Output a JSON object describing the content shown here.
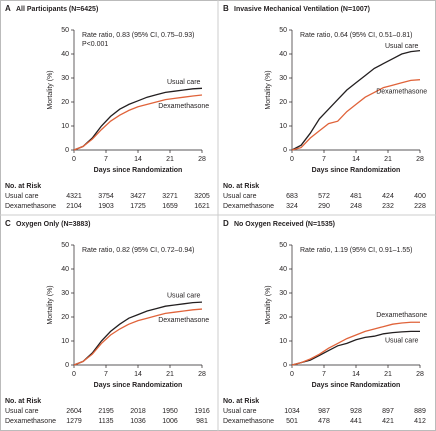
{
  "chart_data": [
    {
      "type": "line",
      "panel_label": "A",
      "title": "All Participants (N=6425)",
      "y_label": "Mortality (%)",
      "x_label": "Days since Randomization",
      "annotations": [
        "Rate ratio, 0.83 (95% CI, 0.75–0.93)",
        "P<0.001"
      ],
      "x": [
        0,
        2,
        4,
        6,
        8,
        10,
        12,
        14,
        16,
        18,
        20,
        22,
        24,
        26,
        28
      ],
      "series": [
        {
          "name": "Usual care",
          "color": "#231f20",
          "values": [
            0,
            1.5,
            5,
            10,
            14,
            17,
            19,
            20.5,
            22,
            23,
            24,
            24.5,
            25,
            25.5,
            25.7
          ]
        },
        {
          "name": "Dexamethasone",
          "color": "#e0633a",
          "values": [
            0,
            1.5,
            4.5,
            8.5,
            12,
            14.5,
            16.5,
            18,
            19,
            20,
            21,
            21.5,
            22,
            22.5,
            22.9
          ]
        }
      ],
      "xlim": [
        0,
        28
      ],
      "xticks": [
        0,
        7,
        14,
        21,
        28
      ],
      "ylim": [
        0,
        50
      ],
      "yticks": [
        0,
        10,
        20,
        30,
        40,
        50
      ],
      "risk_table": {
        "title": "No. at Risk",
        "rows": [
          {
            "label": "Usual care",
            "values": [
              "4321",
              "3754",
              "3427",
              "3271",
              "3205"
            ]
          },
          {
            "label": "Dexamethasone",
            "values": [
              "2104",
              "1903",
              "1725",
              "1659",
              "1621"
            ]
          }
        ]
      }
    },
    {
      "type": "line",
      "panel_label": "B",
      "title": "Invasive Mechanical Ventilation (N=1007)",
      "y_label": "Mortality (%)",
      "x_label": "Days since Randomization",
      "annotations": [
        "Rate ratio, 0.64 (95% CI, 0.51–0.81)"
      ],
      "x": [
        0,
        2,
        4,
        6,
        8,
        10,
        12,
        14,
        16,
        18,
        20,
        22,
        24,
        26,
        28
      ],
      "series": [
        {
          "name": "Usual care",
          "color": "#231f20",
          "values": [
            0,
            2,
            7,
            13,
            17,
            21,
            25,
            28,
            31,
            34,
            36,
            38,
            40,
            41,
            41.4
          ]
        },
        {
          "name": "Dexamethasone",
          "color": "#e0633a",
          "values": [
            0,
            1,
            5,
            8,
            11,
            12,
            16,
            19,
            22,
            24,
            26,
            27,
            28,
            29,
            29.3
          ]
        }
      ],
      "xlim": [
        0,
        28
      ],
      "xticks": [
        0,
        7,
        14,
        21,
        28
      ],
      "ylim": [
        0,
        50
      ],
      "yticks": [
        0,
        10,
        20,
        30,
        40,
        50
      ],
      "risk_table": {
        "title": "No. at Risk",
        "rows": [
          {
            "label": "Usual care",
            "values": [
              "683",
              "572",
              "481",
              "424",
              "400"
            ]
          },
          {
            "label": "Dexamethasone",
            "values": [
              "324",
              "290",
              "248",
              "232",
              "228"
            ]
          }
        ]
      }
    },
    {
      "type": "line",
      "panel_label": "C",
      "title": "Oxygen Only (N=3883)",
      "y_label": "Mortality (%)",
      "x_label": "Days since Randomization",
      "annotations": [
        "Rate ratio, 0.82 (95% CI, 0.72–0.94)"
      ],
      "x": [
        0,
        2,
        4,
        6,
        8,
        10,
        12,
        14,
        16,
        18,
        20,
        22,
        24,
        26,
        28
      ],
      "series": [
        {
          "name": "Usual care",
          "color": "#231f20",
          "values": [
            0,
            1.5,
            5,
            10,
            14,
            17,
            19.5,
            21,
            22.5,
            23.5,
            24.5,
            25,
            25.5,
            26,
            26.2
          ]
        },
        {
          "name": "Dexamethasone",
          "color": "#e0633a",
          "values": [
            0,
            1.5,
            4.5,
            9,
            12.5,
            15,
            17,
            18.5,
            19.5,
            20.5,
            21.5,
            22,
            22.5,
            23,
            23.3
          ]
        }
      ],
      "xlim": [
        0,
        28
      ],
      "xticks": [
        0,
        7,
        14,
        21,
        28
      ],
      "ylim": [
        0,
        50
      ],
      "yticks": [
        0,
        10,
        20,
        30,
        40,
        50
      ],
      "risk_table": {
        "title": "No. at Risk",
        "rows": [
          {
            "label": "Usual care",
            "values": [
              "2604",
              "2195",
              "2018",
              "1950",
              "1916"
            ]
          },
          {
            "label": "Dexamethasone",
            "values": [
              "1279",
              "1135",
              "1036",
              "1006",
              "981"
            ]
          }
        ]
      }
    },
    {
      "type": "line",
      "panel_label": "D",
      "title": "No Oxygen Received (N=1535)",
      "y_label": "Mortality (%)",
      "x_label": "Days since Randomization",
      "annotations": [
        "Rate ratio, 1.19 (95% CI, 0.91–1.55)"
      ],
      "x": [
        0,
        2,
        4,
        6,
        8,
        10,
        12,
        14,
        16,
        18,
        20,
        22,
        24,
        26,
        28
      ],
      "series": [
        {
          "name": "Usual care",
          "color": "#231f20",
          "values": [
            0,
            1,
            2,
            4,
            6,
            8,
            9,
            10.5,
            11.5,
            12,
            13,
            13.5,
            13.8,
            14,
            14
          ]
        },
        {
          "name": "Dexamethasone",
          "color": "#e0633a",
          "values": [
            0,
            1,
            2.5,
            4.5,
            7,
            9,
            11,
            12.5,
            14,
            15,
            16,
            17,
            17.5,
            17.8,
            17.8
          ]
        }
      ],
      "xlim": [
        0,
        28
      ],
      "xticks": [
        0,
        7,
        14,
        21,
        28
      ],
      "ylim": [
        0,
        50
      ],
      "yticks": [
        0,
        10,
        20,
        30,
        40,
        50
      ],
      "risk_table": {
        "title": "No. at Risk",
        "rows": [
          {
            "label": "Usual care",
            "values": [
              "1034",
              "987",
              "928",
              "897",
              "889"
            ]
          },
          {
            "label": "Dexamethasone",
            "values": [
              "501",
              "478",
              "441",
              "421",
              "412"
            ]
          }
        ]
      }
    }
  ]
}
